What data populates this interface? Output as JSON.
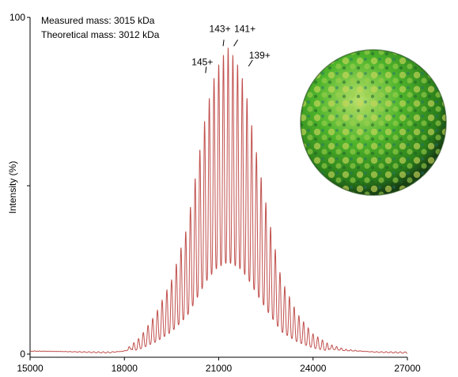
{
  "annotations": {
    "measured": "Measured mass: 3015 kDa",
    "theoretical": "Theoretical mass: 3012 kDa"
  },
  "chart_data": {
    "type": "line",
    "xlabel": "",
    "ylabel": "Intensity (%)",
    "xlim": [
      15000,
      27000
    ],
    "ylim": [
      0,
      100
    ],
    "x_ticks": [
      "15000",
      "18000",
      "21000",
      "24000",
      "27000"
    ],
    "y_ticks": [
      "0",
      "",
      "100"
    ],
    "line_color": "#c0504d",
    "series": [
      {
        "x": [
          15000,
          16000,
          17000,
          17500,
          18000,
          18500,
          19000,
          19500,
          20000,
          20300,
          20600,
          20900,
          21100,
          21300,
          21500,
          21700,
          21900,
          22200,
          22600,
          23000,
          23500,
          24000,
          24500,
          25000,
          26000,
          27000
        ],
        "values": [
          1,
          0.8,
          0.4,
          0.3,
          1,
          5,
          12,
          22,
          38,
          55,
          72,
          84,
          88,
          91,
          88,
          84,
          76,
          60,
          40,
          22,
          12,
          6,
          3,
          1.5,
          0.5,
          0.2
        ]
      }
    ],
    "peak_labels": [
      {
        "text": "145+",
        "x": 20580,
        "y": 83
      },
      {
        "text": "143+",
        "x": 21140,
        "y": 91
      },
      {
        "text": "141+",
        "x": 21480,
        "y": 91
      },
      {
        "text": "139+",
        "x": 21950,
        "y": 85
      }
    ]
  },
  "image": {
    "subject": "capsid surface model",
    "colors": [
      "#2f9b1e",
      "#4fc42a",
      "#b8cf4a",
      "#1e6b7a"
    ]
  }
}
